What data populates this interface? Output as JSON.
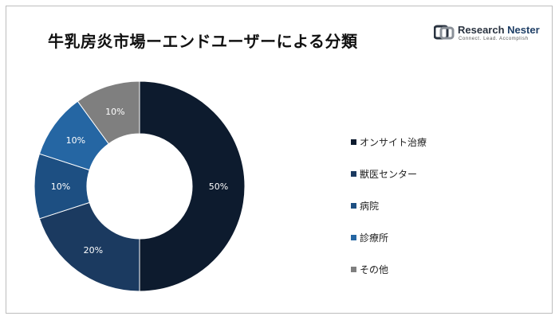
{
  "title": "牛乳房炎市場ーエンドユーザーによる分類",
  "logo": {
    "name_part1": "Research ",
    "name_part2": "Nester",
    "tagline": "Connect. Lead. Accomplish"
  },
  "chart_data": {
    "type": "pie",
    "donut": true,
    "categories": [
      "オンサイト治療",
      "獣医センター",
      "病院",
      "診療所",
      "その他"
    ],
    "values": [
      50,
      20,
      10,
      10,
      10
    ],
    "labels": [
      "50%",
      "20%",
      "10%",
      "10%",
      "10%"
    ],
    "colors": [
      "#0d1b2e",
      "#1b3a60",
      "#1d4f82",
      "#2566a3",
      "#7f7f7f"
    ],
    "legend_position": "right"
  }
}
